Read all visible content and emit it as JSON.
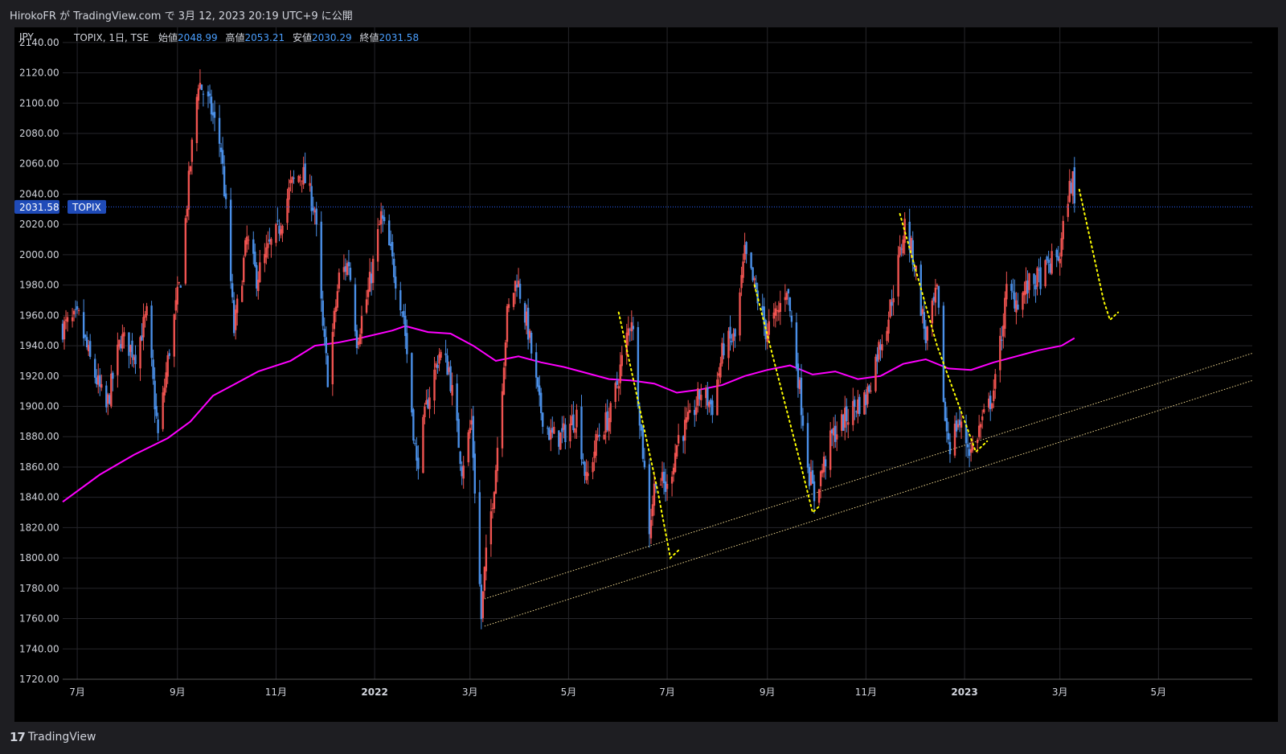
{
  "header": {
    "published_text": "HirokoFR が TradingView.com で 3月 12, 2023 20:19 UTC+9 に公開"
  },
  "legend": {
    "symbol": "TOPIX, 1日, TSE",
    "open_label": "始値",
    "open_value": "2048.99",
    "high_label": "高値",
    "high_value": "2053.21",
    "low_label": "安値",
    "low_value": "2030.29",
    "close_label": "終値",
    "close_value": "2031.58"
  },
  "price_scale": {
    "currency": "JPY",
    "last_price_label": "2031.58",
    "symbol_tag": "TOPIX"
  },
  "footer": {
    "brand": "TradingView"
  },
  "colors": {
    "background": "#000000",
    "up_candle": "#ef5350",
    "down_candle": "#4a8fe7",
    "moving_average": "#ff00ff",
    "annotation": "#ffff00",
    "channel": "#f0d890",
    "last_price_line": "#2962ff",
    "text": "#d1d4dc"
  },
  "chart_data": {
    "type": "candlestick",
    "ylim": [
      1720,
      2150
    ],
    "y_ticks": [
      "2140.00",
      "2120.00",
      "2100.00",
      "2080.00",
      "2060.00",
      "2040.00",
      "2020.00",
      "2000.00",
      "1980.00",
      "1960.00",
      "1940.00",
      "1920.00",
      "1900.00",
      "1880.00",
      "1860.00",
      "1840.00",
      "1820.00",
      "1800.00",
      "1780.00",
      "1760.00",
      "1740.00",
      "1720.00"
    ],
    "x_ticks": [
      {
        "label": "7月",
        "date": "2021-07-01",
        "bold": false
      },
      {
        "label": "9月",
        "date": "2021-09-01",
        "bold": false
      },
      {
        "label": "11月",
        "date": "2021-11-01",
        "bold": false
      },
      {
        "label": "2022",
        "date": "2022-01-01",
        "bold": true
      },
      {
        "label": "3月",
        "date": "2022-03-01",
        "bold": false
      },
      {
        "label": "5月",
        "date": "2022-05-01",
        "bold": false
      },
      {
        "label": "7月",
        "date": "2022-07-01",
        "bold": false
      },
      {
        "label": "9月",
        "date": "2022-09-01",
        "bold": false
      },
      {
        "label": "11月",
        "date": "2022-11-01",
        "bold": false
      },
      {
        "label": "2023",
        "date": "2023-01-01",
        "bold": true
      },
      {
        "label": "3月",
        "date": "2023-03-01",
        "bold": false
      },
      {
        "label": "5月",
        "date": "2023-05-01",
        "bold": false
      }
    ],
    "x_range": [
      "2021-06-22",
      "2023-06-28"
    ],
    "close_path": [
      [
        "2021-06-22",
        1952
      ],
      [
        "2021-07-02",
        1958
      ],
      [
        "2021-07-09",
        1930
      ],
      [
        "2021-07-19",
        1898
      ],
      [
        "2021-07-28",
        1945
      ],
      [
        "2021-08-06",
        1935
      ],
      [
        "2021-08-13",
        1960
      ],
      [
        "2021-08-20",
        1880
      ],
      [
        "2021-08-27",
        1938
      ],
      [
        "2021-09-03",
        1985
      ],
      [
        "2021-09-09",
        2060
      ],
      [
        "2021-09-14",
        2115
      ],
      [
        "2021-09-22",
        2095
      ],
      [
        "2021-09-28",
        2070
      ],
      [
        "2021-10-01",
        2030
      ],
      [
        "2021-10-06",
        1950
      ],
      [
        "2021-10-14",
        2010
      ],
      [
        "2021-10-20",
        1985
      ],
      [
        "2021-10-28",
        2005
      ],
      [
        "2021-11-02",
        2015
      ],
      [
        "2021-11-10",
        2045
      ],
      [
        "2021-11-17",
        2055
      ],
      [
        "2021-11-25",
        2030
      ],
      [
        "2021-11-30",
        1950
      ],
      [
        "2021-12-03",
        1920
      ],
      [
        "2021-12-10",
        1985
      ],
      [
        "2021-12-16",
        1995
      ],
      [
        "2021-12-21",
        1945
      ],
      [
        "2021-12-28",
        1975
      ],
      [
        "2022-01-05",
        2025
      ],
      [
        "2022-01-11",
        2000
      ],
      [
        "2022-01-19",
        1960
      ],
      [
        "2022-01-27",
        1860
      ],
      [
        "2022-02-03",
        1905
      ],
      [
        "2022-02-10",
        1935
      ],
      [
        "2022-02-16",
        1925
      ],
      [
        "2022-02-24",
        1860
      ],
      [
        "2022-03-02",
        1890
      ],
      [
        "2022-03-08",
        1760
      ],
      [
        "2022-03-10",
        1790
      ],
      [
        "2022-03-17",
        1860
      ],
      [
        "2022-03-24",
        1960
      ],
      [
        "2022-03-30",
        1985
      ],
      [
        "2022-04-06",
        1950
      ],
      [
        "2022-04-13",
        1900
      ],
      [
        "2022-04-20",
        1880
      ],
      [
        "2022-04-27",
        1880
      ],
      [
        "2022-05-06",
        1895
      ],
      [
        "2022-05-12",
        1850
      ],
      [
        "2022-05-19",
        1880
      ],
      [
        "2022-05-27",
        1895
      ],
      [
        "2022-06-03",
        1930
      ],
      [
        "2022-06-09",
        1960
      ],
      [
        "2022-06-14",
        1895
      ],
      [
        "2022-06-20",
        1820
      ],
      [
        "2022-06-24",
        1855
      ],
      [
        "2022-07-01",
        1845
      ],
      [
        "2022-07-08",
        1880
      ],
      [
        "2022-07-15",
        1890
      ],
      [
        "2022-07-22",
        1910
      ],
      [
        "2022-07-29",
        1900
      ],
      [
        "2022-08-05",
        1940
      ],
      [
        "2022-08-12",
        1945
      ],
      [
        "2022-08-18",
        2000
      ],
      [
        "2022-08-25",
        1975
      ],
      [
        "2022-08-31",
        1950
      ],
      [
        "2022-09-07",
        1960
      ],
      [
        "2022-09-13",
        1980
      ],
      [
        "2022-09-20",
        1920
      ],
      [
        "2022-09-27",
        1855
      ],
      [
        "2022-09-30",
        1840
      ],
      [
        "2022-10-04",
        1855
      ],
      [
        "2022-10-11",
        1880
      ],
      [
        "2022-10-18",
        1890
      ],
      [
        "2022-10-25",
        1900
      ],
      [
        "2022-11-01",
        1905
      ],
      [
        "2022-11-08",
        1935
      ],
      [
        "2022-11-15",
        1960
      ],
      [
        "2022-11-22",
        2000
      ],
      [
        "2022-11-25",
        2020
      ],
      [
        "2022-12-01",
        1995
      ],
      [
        "2022-12-08",
        1945
      ],
      [
        "2022-12-15",
        1975
      ],
      [
        "2022-12-20",
        1890
      ],
      [
        "2022-12-23",
        1875
      ],
      [
        "2022-12-28",
        1890
      ],
      [
        "2023-01-05",
        1870
      ],
      [
        "2023-01-10",
        1885
      ],
      [
        "2023-01-16",
        1900
      ],
      [
        "2023-01-20",
        1915
      ],
      [
        "2023-01-27",
        1975
      ],
      [
        "2023-02-03",
        1970
      ],
      [
        "2023-02-10",
        1980
      ],
      [
        "2023-02-17",
        1985
      ],
      [
        "2023-02-24",
        1995
      ],
      [
        "2023-03-01",
        2000
      ],
      [
        "2023-03-06",
        2040
      ],
      [
        "2023-03-09",
        2050
      ],
      [
        "2023-03-10",
        2031.58
      ]
    ],
    "moving_average": [
      [
        "2021-06-22",
        1837
      ],
      [
        "2021-07-15",
        1855
      ],
      [
        "2021-08-05",
        1868
      ],
      [
        "2021-08-26",
        1879
      ],
      [
        "2021-09-09",
        1890
      ],
      [
        "2021-09-23",
        1907
      ],
      [
        "2021-10-07",
        1915
      ],
      [
        "2021-10-21",
        1923
      ],
      [
        "2021-11-10",
        1930
      ],
      [
        "2021-11-25",
        1940
      ],
      [
        "2021-12-09",
        1942
      ],
      [
        "2021-12-23",
        1945
      ],
      [
        "2022-01-12",
        1950
      ],
      [
        "2022-01-20",
        1953
      ],
      [
        "2022-02-03",
        1949
      ],
      [
        "2022-02-17",
        1948
      ],
      [
        "2022-03-03",
        1940
      ],
      [
        "2022-03-17",
        1930
      ],
      [
        "2022-03-31",
        1933
      ],
      [
        "2022-04-14",
        1929
      ],
      [
        "2022-04-28",
        1926
      ],
      [
        "2022-05-12",
        1922
      ],
      [
        "2022-05-26",
        1918
      ],
      [
        "2022-06-09",
        1917
      ],
      [
        "2022-06-23",
        1915
      ],
      [
        "2022-07-07",
        1909
      ],
      [
        "2022-07-21",
        1911
      ],
      [
        "2022-08-04",
        1914
      ],
      [
        "2022-08-18",
        1920
      ],
      [
        "2022-09-01",
        1924
      ],
      [
        "2022-09-15",
        1927
      ],
      [
        "2022-09-29",
        1921
      ],
      [
        "2022-10-13",
        1923
      ],
      [
        "2022-10-27",
        1918
      ],
      [
        "2022-11-10",
        1920
      ],
      [
        "2022-11-24",
        1928
      ],
      [
        "2022-12-08",
        1931
      ],
      [
        "2022-12-22",
        1925
      ],
      [
        "2023-01-05",
        1924
      ],
      [
        "2023-01-19",
        1929
      ],
      [
        "2023-02-02",
        1933
      ],
      [
        "2023-02-16",
        1937
      ],
      [
        "2023-03-02",
        1940
      ],
      [
        "2023-03-10",
        1945
      ]
    ],
    "channel_lines": [
      [
        [
          "2022-03-10",
          1773
        ],
        [
          "2023-06-28",
          1935
        ]
      ],
      [
        [
          "2022-03-10",
          1755
        ],
        [
          "2023-06-28",
          1917
        ]
      ]
    ],
    "annotation_lines": [
      [
        [
          "2022-06-01",
          1962
        ],
        [
          "2022-06-25",
          1845
        ],
        [
          "2022-07-03",
          1800
        ],
        [
          "2022-07-08",
          1805
        ]
      ],
      [
        [
          "2022-08-24",
          1980
        ],
        [
          "2022-09-22",
          1860
        ],
        [
          "2022-09-29",
          1830
        ],
        [
          "2022-10-04",
          1835
        ]
      ],
      [
        [
          "2022-11-22",
          2027
        ],
        [
          "2022-12-15",
          1940
        ],
        [
          "2023-01-08",
          1870
        ],
        [
          "2023-01-15",
          1877
        ]
      ],
      [
        [
          "2023-03-13",
          2043
        ],
        [
          "2023-03-28",
          1970
        ],
        [
          "2023-04-01",
          1957
        ],
        [
          "2023-04-06",
          1962
        ]
      ]
    ]
  }
}
